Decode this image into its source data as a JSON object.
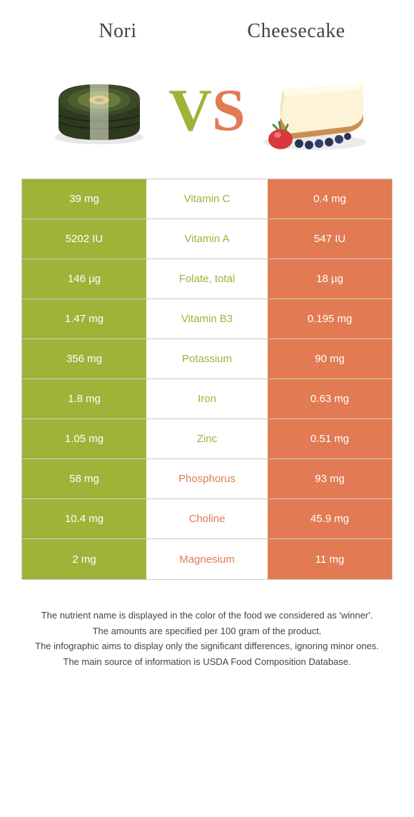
{
  "titles": {
    "left": "Nori",
    "right": "Cheesecake"
  },
  "vs": {
    "v": "V",
    "s": "S"
  },
  "colors": {
    "left_fill": "#9fb339",
    "right_fill": "#e27b53",
    "row_border": "#cccccc",
    "text_dark": "#444444",
    "white": "#ffffff",
    "nori_dark": "#2e3a1e",
    "nori_light": "#6a7a3a",
    "nori_core": "#d4a648",
    "cake_cream": "#fdf3d8",
    "cake_crust": "#c98f52",
    "cake_top": "#fffbe8",
    "strawberry": "#d63a3a",
    "strawberry_leaf": "#5a8a3a",
    "blueberry": "#2a3556"
  },
  "table": {
    "rows": [
      {
        "left": "39 mg",
        "label": "Vitamin C",
        "right": "0.4 mg",
        "winner": "left"
      },
      {
        "left": "5202 IU",
        "label": "Vitamin A",
        "right": "547 IU",
        "winner": "left"
      },
      {
        "left": "146 µg",
        "label": "Folate, total",
        "right": "18 µg",
        "winner": "left"
      },
      {
        "left": "1.47 mg",
        "label": "Vitamin B3",
        "right": "0.195 mg",
        "winner": "left"
      },
      {
        "left": "356 mg",
        "label": "Potassium",
        "right": "90 mg",
        "winner": "left"
      },
      {
        "left": "1.8 mg",
        "label": "Iron",
        "right": "0.63 mg",
        "winner": "left"
      },
      {
        "left": "1.05 mg",
        "label": "Zinc",
        "right": "0.51 mg",
        "winner": "left"
      },
      {
        "left": "58 mg",
        "label": "Phosphorus",
        "right": "93 mg",
        "winner": "right"
      },
      {
        "left": "10.4 mg",
        "label": "Choline",
        "right": "45.9 mg",
        "winner": "right"
      },
      {
        "left": "2 mg",
        "label": "Magnesium",
        "right": "11 mg",
        "winner": "right"
      }
    ]
  },
  "footnotes": [
    "The nutrient name is displayed in the color of the food we considered as 'winner'.",
    "The amounts are specified per 100 gram of the product.",
    "The infographic aims to display only the significant differences, ignoring minor ones.",
    "The main source of information is USDA Food Composition Database."
  ]
}
